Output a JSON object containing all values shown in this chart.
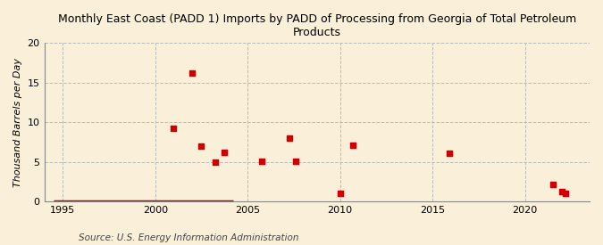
{
  "title": "Monthly East Coast (PADD 1) Imports by PADD of Processing from Georgia of Total Petroleum\nProducts",
  "ylabel": "Thousand Barrels per Day",
  "source": "Source: U.S. Energy Information Administration",
  "background_color": "#faefd8",
  "scatter_x": [
    2001.0,
    2002.0,
    2002.5,
    2003.25,
    2003.75,
    2005.75,
    2007.25,
    2007.6,
    2010.0,
    2010.7,
    2015.9,
    2021.5,
    2022.0,
    2022.2
  ],
  "scatter_y": [
    9.2,
    16.2,
    7.0,
    5.0,
    6.2,
    5.1,
    8.0,
    5.1,
    1.0,
    7.1,
    6.1,
    2.1,
    1.2,
    1.0
  ],
  "line_x": [
    1994.5,
    2004.2
  ],
  "line_y": [
    0.0,
    0.0
  ],
  "xlim": [
    1994.0,
    2023.5
  ],
  "ylim": [
    0,
    20
  ],
  "yticks": [
    0,
    5,
    10,
    15,
    20
  ],
  "xticks": [
    1995,
    2000,
    2005,
    2010,
    2015,
    2020
  ],
  "marker_color": "#cc0000",
  "line_color": "#cc0000",
  "grid_major_color": "#bbbbbb",
  "grid_minor_color": "#cccccc",
  "title_fontsize": 9.0,
  "label_fontsize": 8.0,
  "tick_fontsize": 8.0,
  "source_fontsize": 7.5
}
